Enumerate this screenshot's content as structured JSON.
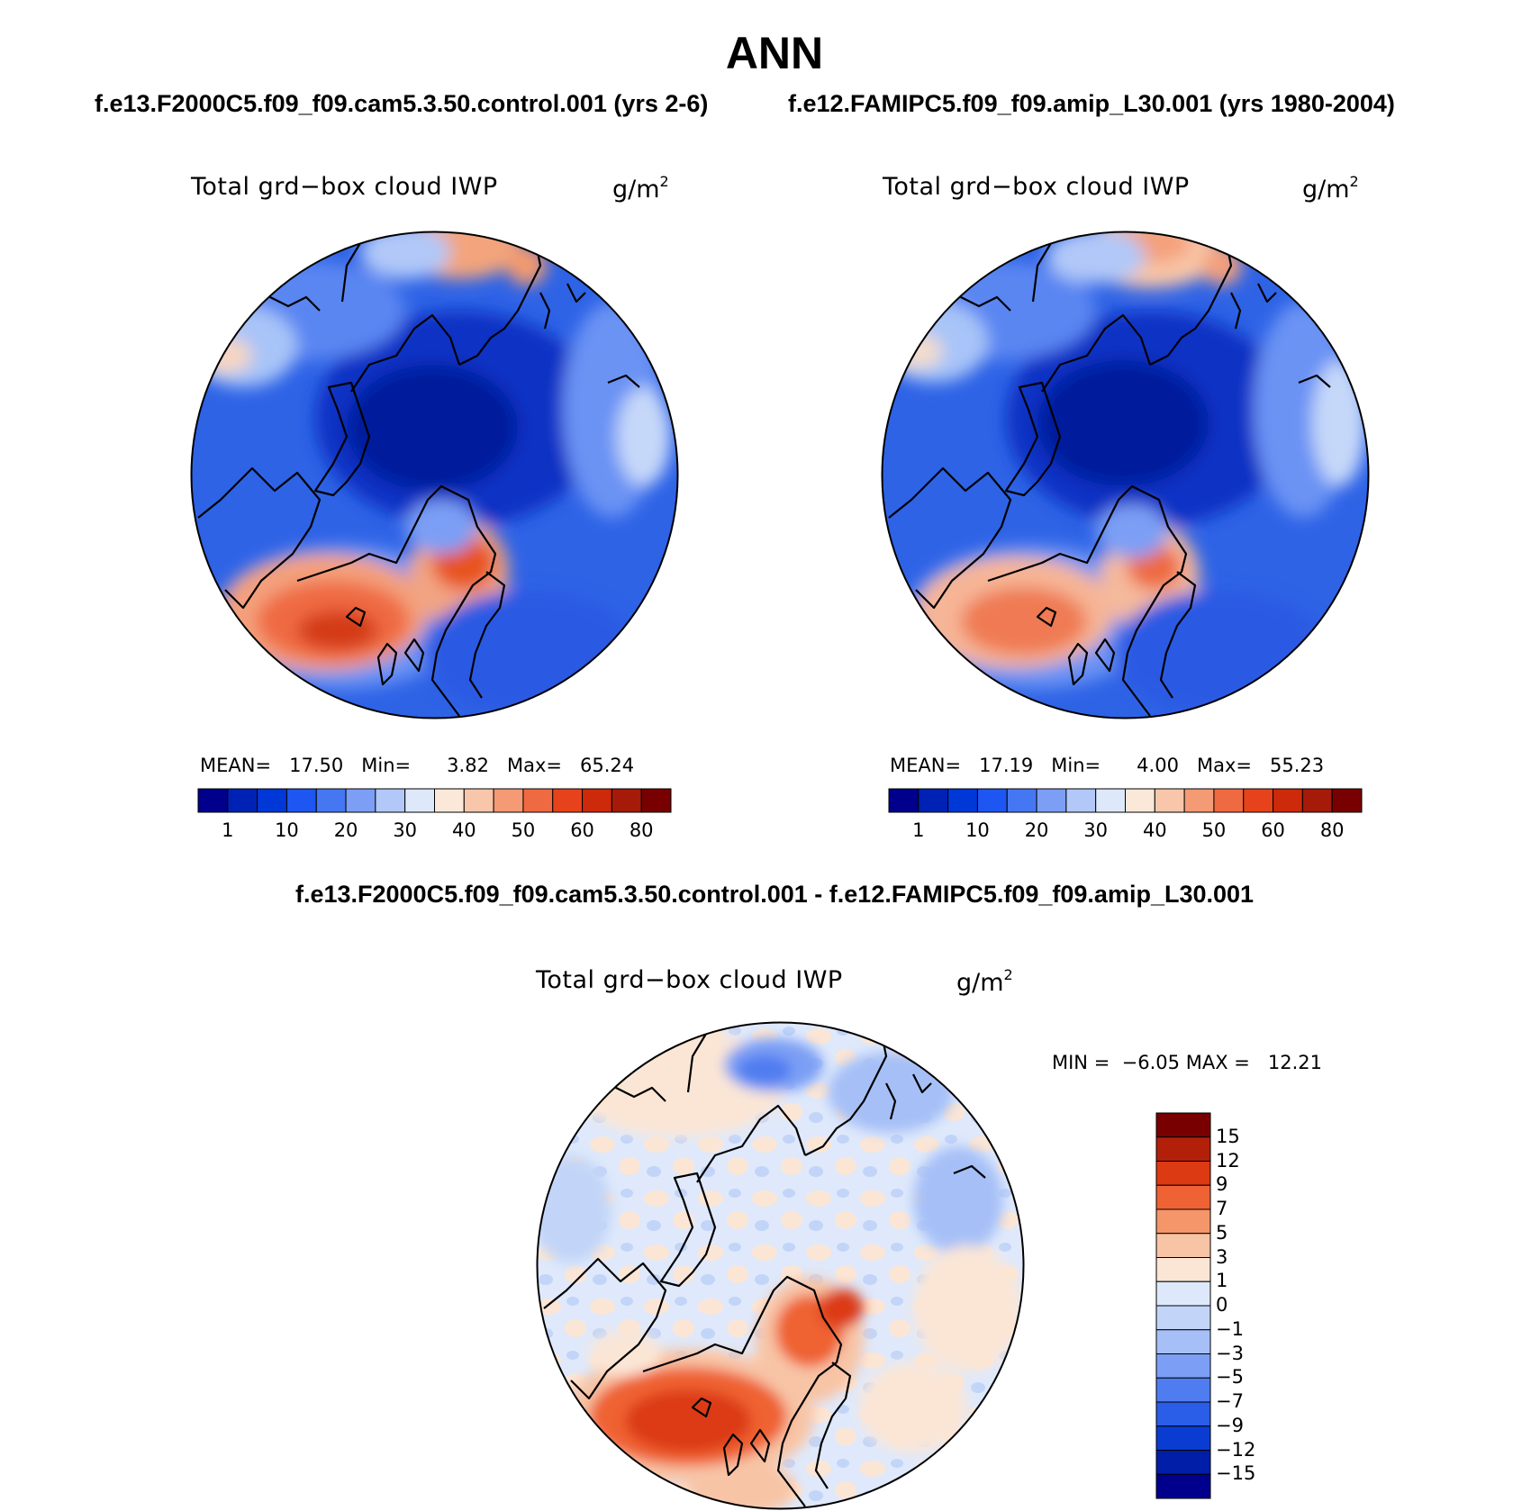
{
  "figure": {
    "season": "ANN",
    "case_line_left": "f.e13.F2000C5.f09_f09.cam5.3.50.control.001 (yrs 2-6)",
    "case_line_right": "f.e12.FAMIPC5.f09_f09.amip_L30.001 (yrs 1980-2004)",
    "diff_title": "f.e13.F2000C5.f09_f09.cam5.3.50.control.001 - f.e12.FAMIPC5.f09_f09.amip_L30.001"
  },
  "colors": {
    "ocean_base": "#2e63e6",
    "coast": "#000000"
  },
  "chart_data": [
    {
      "type": "heatmap",
      "projection": "north-polar-stereographic",
      "title": "Total grd−box cloud IWP",
      "units": "g/m",
      "units_exp": "2",
      "stats": {
        "mean_label": "MEAN=",
        "mean": "17.50",
        "min_label": "Min=",
        "min": "3.82",
        "max_label": "Max=",
        "max": "65.24"
      },
      "levels": [
        "1",
        "10",
        "20",
        "30",
        "40",
        "50",
        "60",
        "80"
      ],
      "colors": [
        "#00008c",
        "#0022b4",
        "#0038d8",
        "#1d56f0",
        "#4677f2",
        "#7c9ff5",
        "#b1c8f8",
        "#dde9fb",
        "#fbe8d8",
        "#f8c6aa",
        "#f49a74",
        "#ef6a42",
        "#e6431c",
        "#cc2a0a",
        "#a61a0a",
        "#780000"
      ],
      "legend_position": "bottom"
    },
    {
      "type": "heatmap",
      "projection": "north-polar-stereographic",
      "title": "Total grd−box cloud IWP",
      "units": "g/m",
      "units_exp": "2",
      "stats": {
        "mean_label": "MEAN=",
        "mean": "17.19",
        "min_label": "Min=",
        "min": "4.00",
        "max_label": "Max=",
        "max": "55.23"
      },
      "levels": [
        "1",
        "10",
        "20",
        "30",
        "40",
        "50",
        "60",
        "80"
      ],
      "colors": [
        "#00008c",
        "#0022b4",
        "#0038d8",
        "#1d56f0",
        "#4677f2",
        "#7c9ff5",
        "#b1c8f8",
        "#dde9fb",
        "#fbe8d8",
        "#f8c6aa",
        "#f49a74",
        "#ef6a42",
        "#e6431c",
        "#cc2a0a",
        "#a61a0a",
        "#780000"
      ],
      "legend_position": "bottom"
    },
    {
      "type": "heatmap",
      "projection": "north-polar-stereographic",
      "title": "Total grd−box cloud IWP",
      "units": "g/m",
      "units_exp": "2",
      "stats": {
        "min_label": "MIN =",
        "min": "−6.05",
        "max_label": "MAX =",
        "max": "12.21"
      },
      "levels": [
        "15",
        "12",
        "9",
        "7",
        "5",
        "3",
        "1",
        "0",
        "−1",
        "−3",
        "−5",
        "−7",
        "−9",
        "−12",
        "−15"
      ],
      "colors": [
        "#780000",
        "#b2200a",
        "#dc3a12",
        "#ef6233",
        "#f4966a",
        "#f8c4a6",
        "#fbe6d6",
        "#dde9fb",
        "#c2d5f8",
        "#a6c0f7",
        "#7c9ff5",
        "#4f7cf0",
        "#2a5de8",
        "#0a3cd2",
        "#001ea8",
        "#00008c"
      ],
      "legend_position": "right"
    }
  ]
}
